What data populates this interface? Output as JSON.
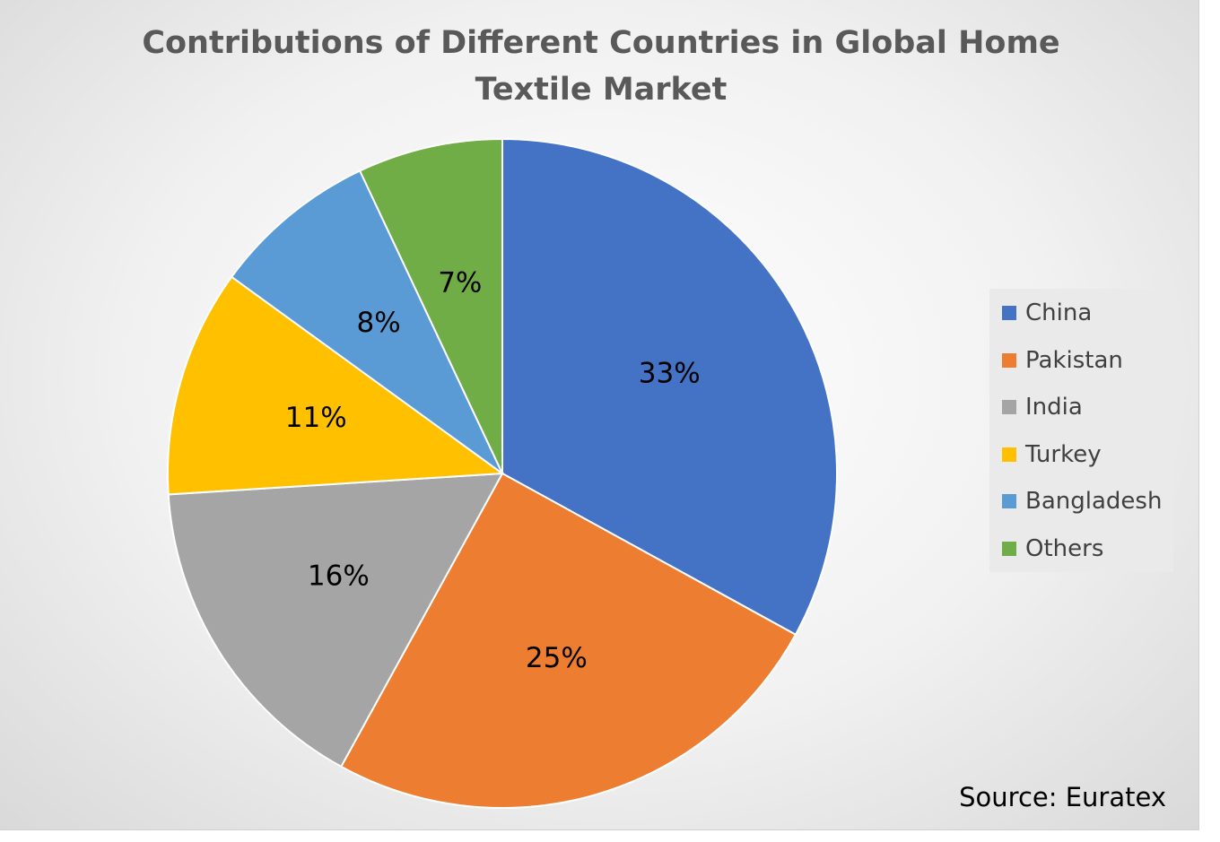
{
  "chart_data": {
    "type": "pie",
    "title": "Contributions of Different Countries in Global Home Textile Market",
    "categories": [
      "China",
      "Pakistan",
      "India",
      "Turkey",
      "Bangladesh",
      "Others"
    ],
    "values": [
      33,
      25,
      16,
      11,
      8,
      7
    ],
    "value_labels": [
      "33%",
      "25%",
      "16%",
      "11%",
      "8%",
      "7%"
    ],
    "colors": [
      "#4472C4",
      "#ED7D31",
      "#A5A5A5",
      "#FFC000",
      "#5B9BD5",
      "#70AD47"
    ],
    "legend_position": "right",
    "start_angle": "top",
    "direction": "clockwise"
  },
  "title_line1": "Contributions of Different Countries in Global Home",
  "title_line2": "Textile Market",
  "source": "Source: Euratex"
}
